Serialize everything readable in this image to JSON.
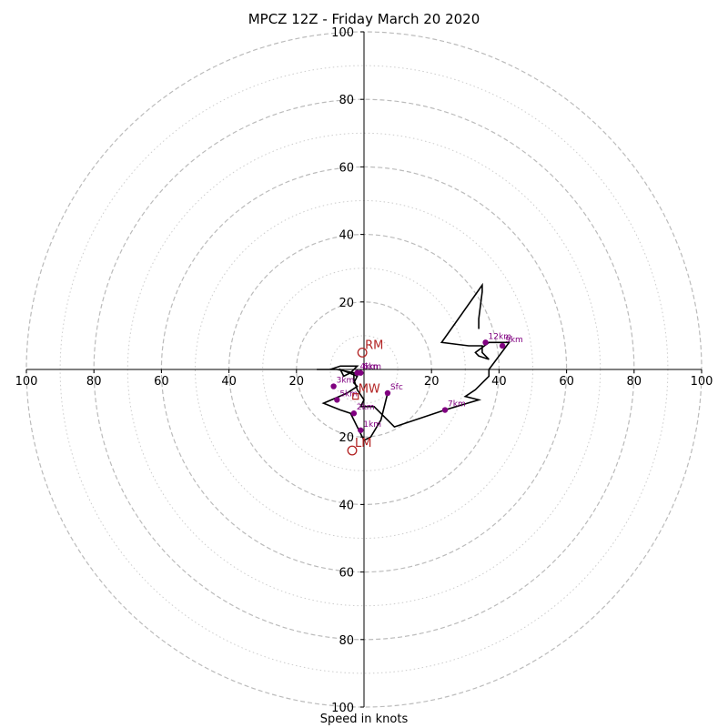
{
  "chart_data": {
    "type": "hodograph",
    "title": "MPCZ 12Z - Friday March 20 2020",
    "xlabel": "Speed in knots",
    "ylabel": "",
    "rings_major": [
      20,
      40,
      60,
      80,
      100
    ],
    "rings_minor": [
      10,
      30,
      50,
      70,
      90
    ],
    "tick_labels": [
      "20",
      "40",
      "60",
      "80",
      "100"
    ],
    "range": [
      -100,
      100
    ],
    "hodo_trace": [
      [
        7,
        -7
      ],
      [
        5,
        -15
      ],
      [
        2,
        -20
      ],
      [
        0,
        -21
      ],
      [
        -2,
        -17
      ],
      [
        -3,
        -15
      ],
      [
        -4,
        -13
      ],
      [
        -7,
        -12
      ],
      [
        -12,
        -10
      ],
      [
        -5,
        -7
      ],
      [
        -2,
        -5
      ],
      [
        -3,
        -4
      ],
      [
        -2,
        -2
      ],
      [
        -7,
        0
      ],
      [
        -6,
        -2
      ],
      [
        -4,
        -1
      ],
      [
        -2,
        1
      ],
      [
        -4,
        1
      ],
      [
        -7,
        1
      ],
      [
        -10,
        0
      ],
      [
        -14,
        0
      ],
      [
        -8,
        0
      ],
      [
        -3,
        -1
      ],
      [
        -3,
        -3
      ],
      [
        -2,
        -6
      ],
      [
        0,
        -9
      ],
      [
        -1,
        -11
      ],
      [
        3,
        -11
      ],
      [
        9,
        -17
      ],
      [
        24,
        -12
      ],
      [
        34,
        -9
      ],
      [
        30,
        -8
      ],
      [
        33,
        -6
      ],
      [
        37,
        -2
      ],
      [
        37,
        0
      ],
      [
        43,
        8
      ],
      [
        41,
        8
      ],
      [
        37,
        8
      ],
      [
        33,
        5
      ],
      [
        34,
        4
      ],
      [
        37,
        3
      ],
      [
        35,
        5
      ],
      [
        35,
        7
      ],
      [
        31,
        7
      ],
      [
        23,
        8
      ],
      [
        35,
        25
      ],
      [
        35,
        23
      ],
      [
        34,
        15
      ],
      [
        34,
        12
      ],
      [
        34,
        14
      ]
    ],
    "height_points": [
      {
        "label": "Sfc",
        "u": 7,
        "v": -7
      },
      {
        "label": "1km",
        "u": -1,
        "v": -18
      },
      {
        "label": "2km",
        "u": -3,
        "v": -13
      },
      {
        "label": "3km",
        "u": -9,
        "v": -5
      },
      {
        "label": "4km",
        "u": -2,
        "v": -1
      },
      {
        "label": "5km",
        "u": -8,
        "v": -9
      },
      {
        "label": "6km",
        "u": -1,
        "v": -1
      },
      {
        "label": "7km",
        "u": 24,
        "v": -12
      },
      {
        "label": "9km",
        "u": 41,
        "v": 7
      },
      {
        "label": "12km",
        "u": 36,
        "v": 8
      }
    ],
    "markers": [
      {
        "label": "RM",
        "u": -0.5,
        "v": 5
      },
      {
        "label": "LM",
        "u": -3.5,
        "v": -24
      },
      {
        "label": "MW",
        "u": -2.5,
        "v": -8
      }
    ],
    "colors": {
      "trace": "#000000",
      "points": "#800080",
      "point_labels": "#800080",
      "markers": "#b22222",
      "rings": "#bbbbbb",
      "axes": "#000000"
    }
  }
}
